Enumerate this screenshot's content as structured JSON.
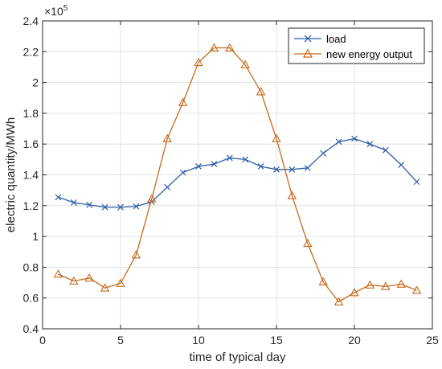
{
  "chart_data": {
    "type": "line",
    "xlabel": "time of typical day",
    "ylabel": "electric quantity/MWh",
    "y_exponent_label": "×10",
    "y_exponent_power": "5",
    "xlim": [
      0,
      25
    ],
    "ylim": [
      0.4,
      2.4
    ],
    "xticks": [
      0,
      5,
      10,
      15,
      20,
      25
    ],
    "yticks": [
      0.4,
      0.6,
      0.8,
      1,
      1.2,
      1.4,
      1.6,
      1.8,
      2,
      2.2,
      2.4
    ],
    "xtick_labels": [
      "0",
      "5",
      "10",
      "15",
      "20",
      "25"
    ],
    "ytick_labels": [
      "0.4",
      "0.6",
      "0.8",
      "1",
      "1.2",
      "1.4",
      "1.6",
      "1.8",
      "2",
      "2.2",
      "2.4"
    ],
    "grid": true,
    "legend_position": "top-right",
    "x": [
      1,
      2,
      3,
      4,
      5,
      6,
      7,
      8,
      9,
      10,
      11,
      12,
      13,
      14,
      15,
      16,
      17,
      18,
      19,
      20,
      21,
      22,
      23,
      24
    ],
    "series": [
      {
        "name": "load",
        "color": "#2e5fa8",
        "marker": "x",
        "values": [
          1.255,
          1.22,
          1.205,
          1.19,
          1.19,
          1.195,
          1.225,
          1.32,
          1.415,
          1.455,
          1.47,
          1.51,
          1.5,
          1.455,
          1.435,
          1.435,
          1.445,
          1.54,
          1.615,
          1.635,
          1.6,
          1.56,
          1.465,
          1.355
        ]
      },
      {
        "name": "new energy output",
        "color": "#c76a1e",
        "marker": "triangle",
        "values": [
          0.755,
          0.71,
          0.73,
          0.665,
          0.695,
          0.88,
          1.245,
          1.635,
          1.87,
          2.13,
          2.225,
          2.225,
          2.115,
          1.94,
          1.635,
          1.265,
          0.955,
          0.705,
          0.575,
          0.635,
          0.685,
          0.675,
          0.69,
          0.65
        ]
      }
    ]
  }
}
